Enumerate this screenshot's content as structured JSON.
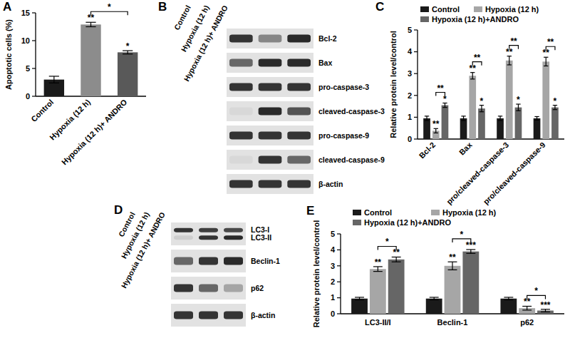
{
  "chart_data": [
    {
      "type": "bar",
      "title": "A",
      "y_label": "Apoptotic cells (%)",
      "categories": [
        "Control",
        "Hypoxia (12 h)",
        "Hypoxia (12 h)+ ANDRO"
      ],
      "series": [
        {
          "colors": [
            "#1a1a1a",
            "#8c8c8c",
            "#595959"
          ],
          "values": [
            3.0,
            12.9,
            7.9
          ],
          "errors": [
            0.6,
            0.4,
            0.3
          ],
          "annotations": [
            null,
            "**",
            "*"
          ]
        }
      ],
      "comparisons": [
        {
          "categories": [
            1,
            2
          ],
          "label": "*"
        }
      ],
      "ylim": [
        0,
        15
      ],
      "yticks": [
        0,
        5,
        10,
        15
      ]
    },
    {
      "type": "bar",
      "title": "C",
      "y_label": "Relative protein level/control",
      "legend": "top",
      "categories": [
        "Bcl-2",
        "Bax",
        "pro/cleaved-caspase-3",
        "pro/cleaved-caspase-9"
      ],
      "series": [
        {
          "name": "Control",
          "color": "#1a1a1a",
          "values": [
            0.95,
            0.95,
            0.95,
            0.95
          ],
          "errors": [
            0.1,
            0.1,
            0.1,
            0.08
          ],
          "annotations": [
            null,
            null,
            null,
            null
          ]
        },
        {
          "name": "Hypoxia (12 h)",
          "color": "#a6a6a6",
          "values": [
            0.38,
            2.9,
            3.6,
            3.55
          ],
          "errors": [
            0.1,
            0.15,
            0.2,
            0.2
          ],
          "annotations": [
            "**",
            "**",
            "**",
            "**"
          ]
        },
        {
          "name": "Hypoxia (12 h)+ANDRO",
          "color": "#666666",
          "values": [
            1.55,
            1.4,
            1.45,
            1.45
          ],
          "errors": [
            0.1,
            0.15,
            0.15,
            0.1
          ],
          "annotations": [
            "*",
            "*",
            "*",
            "*"
          ]
        }
      ],
      "comparisons": [
        {
          "category": 0,
          "series": [
            1,
            2
          ],
          "label": "**"
        },
        {
          "category": 1,
          "series": [
            1,
            2
          ],
          "label": "**"
        },
        {
          "category": 2,
          "series": [
            1,
            2
          ],
          "label": "**"
        },
        {
          "category": 3,
          "series": [
            1,
            2
          ],
          "label": "**"
        }
      ],
      "ylim": [
        0,
        5
      ],
      "yticks": [
        0,
        1,
        2,
        3,
        4,
        5
      ]
    },
    {
      "type": "bar",
      "title": "E",
      "y_label": "Relative protein level/control",
      "legend": "top",
      "categories": [
        "LC3-II/I",
        "Beclin-1",
        "p62"
      ],
      "series": [
        {
          "name": "Control",
          "color": "#1a1a1a",
          "values": [
            0.95,
            0.95,
            0.95
          ],
          "errors": [
            0.08,
            0.08,
            0.08
          ],
          "annotations": [
            null,
            null,
            null
          ]
        },
        {
          "name": "Hypoxia (12 h)",
          "color": "#a6a6a6",
          "values": [
            2.8,
            3.0,
            0.35
          ],
          "errors": [
            0.15,
            0.25,
            0.12
          ],
          "annotations": [
            "**",
            "**",
            "**"
          ]
        },
        {
          "name": "Hypoxia (12 h)+ANDRO",
          "color": "#666666",
          "values": [
            3.4,
            3.9,
            0.2
          ],
          "errors": [
            0.15,
            0.12,
            0.08
          ],
          "annotations": [
            "**",
            "***",
            "***"
          ]
        }
      ],
      "comparisons": [
        {
          "category": 0,
          "series": [
            1,
            2
          ],
          "label": "*"
        },
        {
          "category": 1,
          "series": [
            1,
            2
          ],
          "label": "*"
        },
        {
          "category": 2,
          "series": [
            1,
            2
          ],
          "label": "*"
        }
      ],
      "ylim": [
        0,
        5
      ],
      "yticks": [
        0,
        1,
        2,
        3,
        4,
        5
      ]
    }
  ],
  "blots": [
    {
      "title": "B",
      "lanes": [
        "Control",
        "Hypoxia (12 h)",
        "Hypoxia (12 h)+ ANDRO"
      ],
      "rows": [
        {
          "bands": [
            {
              "name": "Bcl-2",
              "intensities": [
                0.85,
                0.45,
                0.9
              ]
            }
          ]
        },
        {
          "bands": [
            {
              "name": "Bax",
              "intensities": [
                0.6,
                0.9,
                0.9
              ]
            }
          ]
        },
        {
          "bands": [
            {
              "name": "pro-caspase-3",
              "intensities": [
                0.85,
                0.85,
                0.85
              ]
            }
          ]
        },
        {
          "bands": [
            {
              "name": "cleaved-caspase-3",
              "intensities": [
                0.05,
                0.9,
                0.7
              ]
            }
          ]
        },
        {
          "bands": [
            {
              "name": "pro-caspase-9",
              "intensities": [
                0.85,
                0.85,
                0.85
              ]
            }
          ]
        },
        {
          "bands": [
            {
              "name": "cleaved-caspase-9",
              "intensities": [
                0.05,
                0.85,
                0.6
              ]
            }
          ]
        },
        {
          "bands": [
            {
              "name": "β-actin",
              "intensities": [
                0.85,
                0.85,
                0.85
              ]
            }
          ]
        }
      ]
    },
    {
      "title": "D",
      "lanes": [
        "Control",
        "Hypoxia (12 h)",
        "Hypoxia (12 h)+ ANDRO"
      ],
      "rows": [
        {
          "bands": [
            {
              "name": "LC3-I",
              "intensities": [
                0.85,
                0.8,
                0.75
              ]
            },
            {
              "name": "LC3-II",
              "intensities": [
                0.1,
                0.85,
                0.9
              ]
            }
          ]
        },
        {
          "bands": [
            {
              "name": "Beclin-1",
              "intensities": [
                0.6,
                0.85,
                0.9
              ]
            }
          ]
        },
        {
          "bands": [
            {
              "name": "p62",
              "intensities": [
                0.85,
                0.6,
                0.3
              ]
            }
          ]
        },
        {
          "bands": [
            {
              "name": "β-actin",
              "intensities": [
                0.85,
                0.85,
                0.85
              ]
            }
          ]
        }
      ]
    }
  ]
}
